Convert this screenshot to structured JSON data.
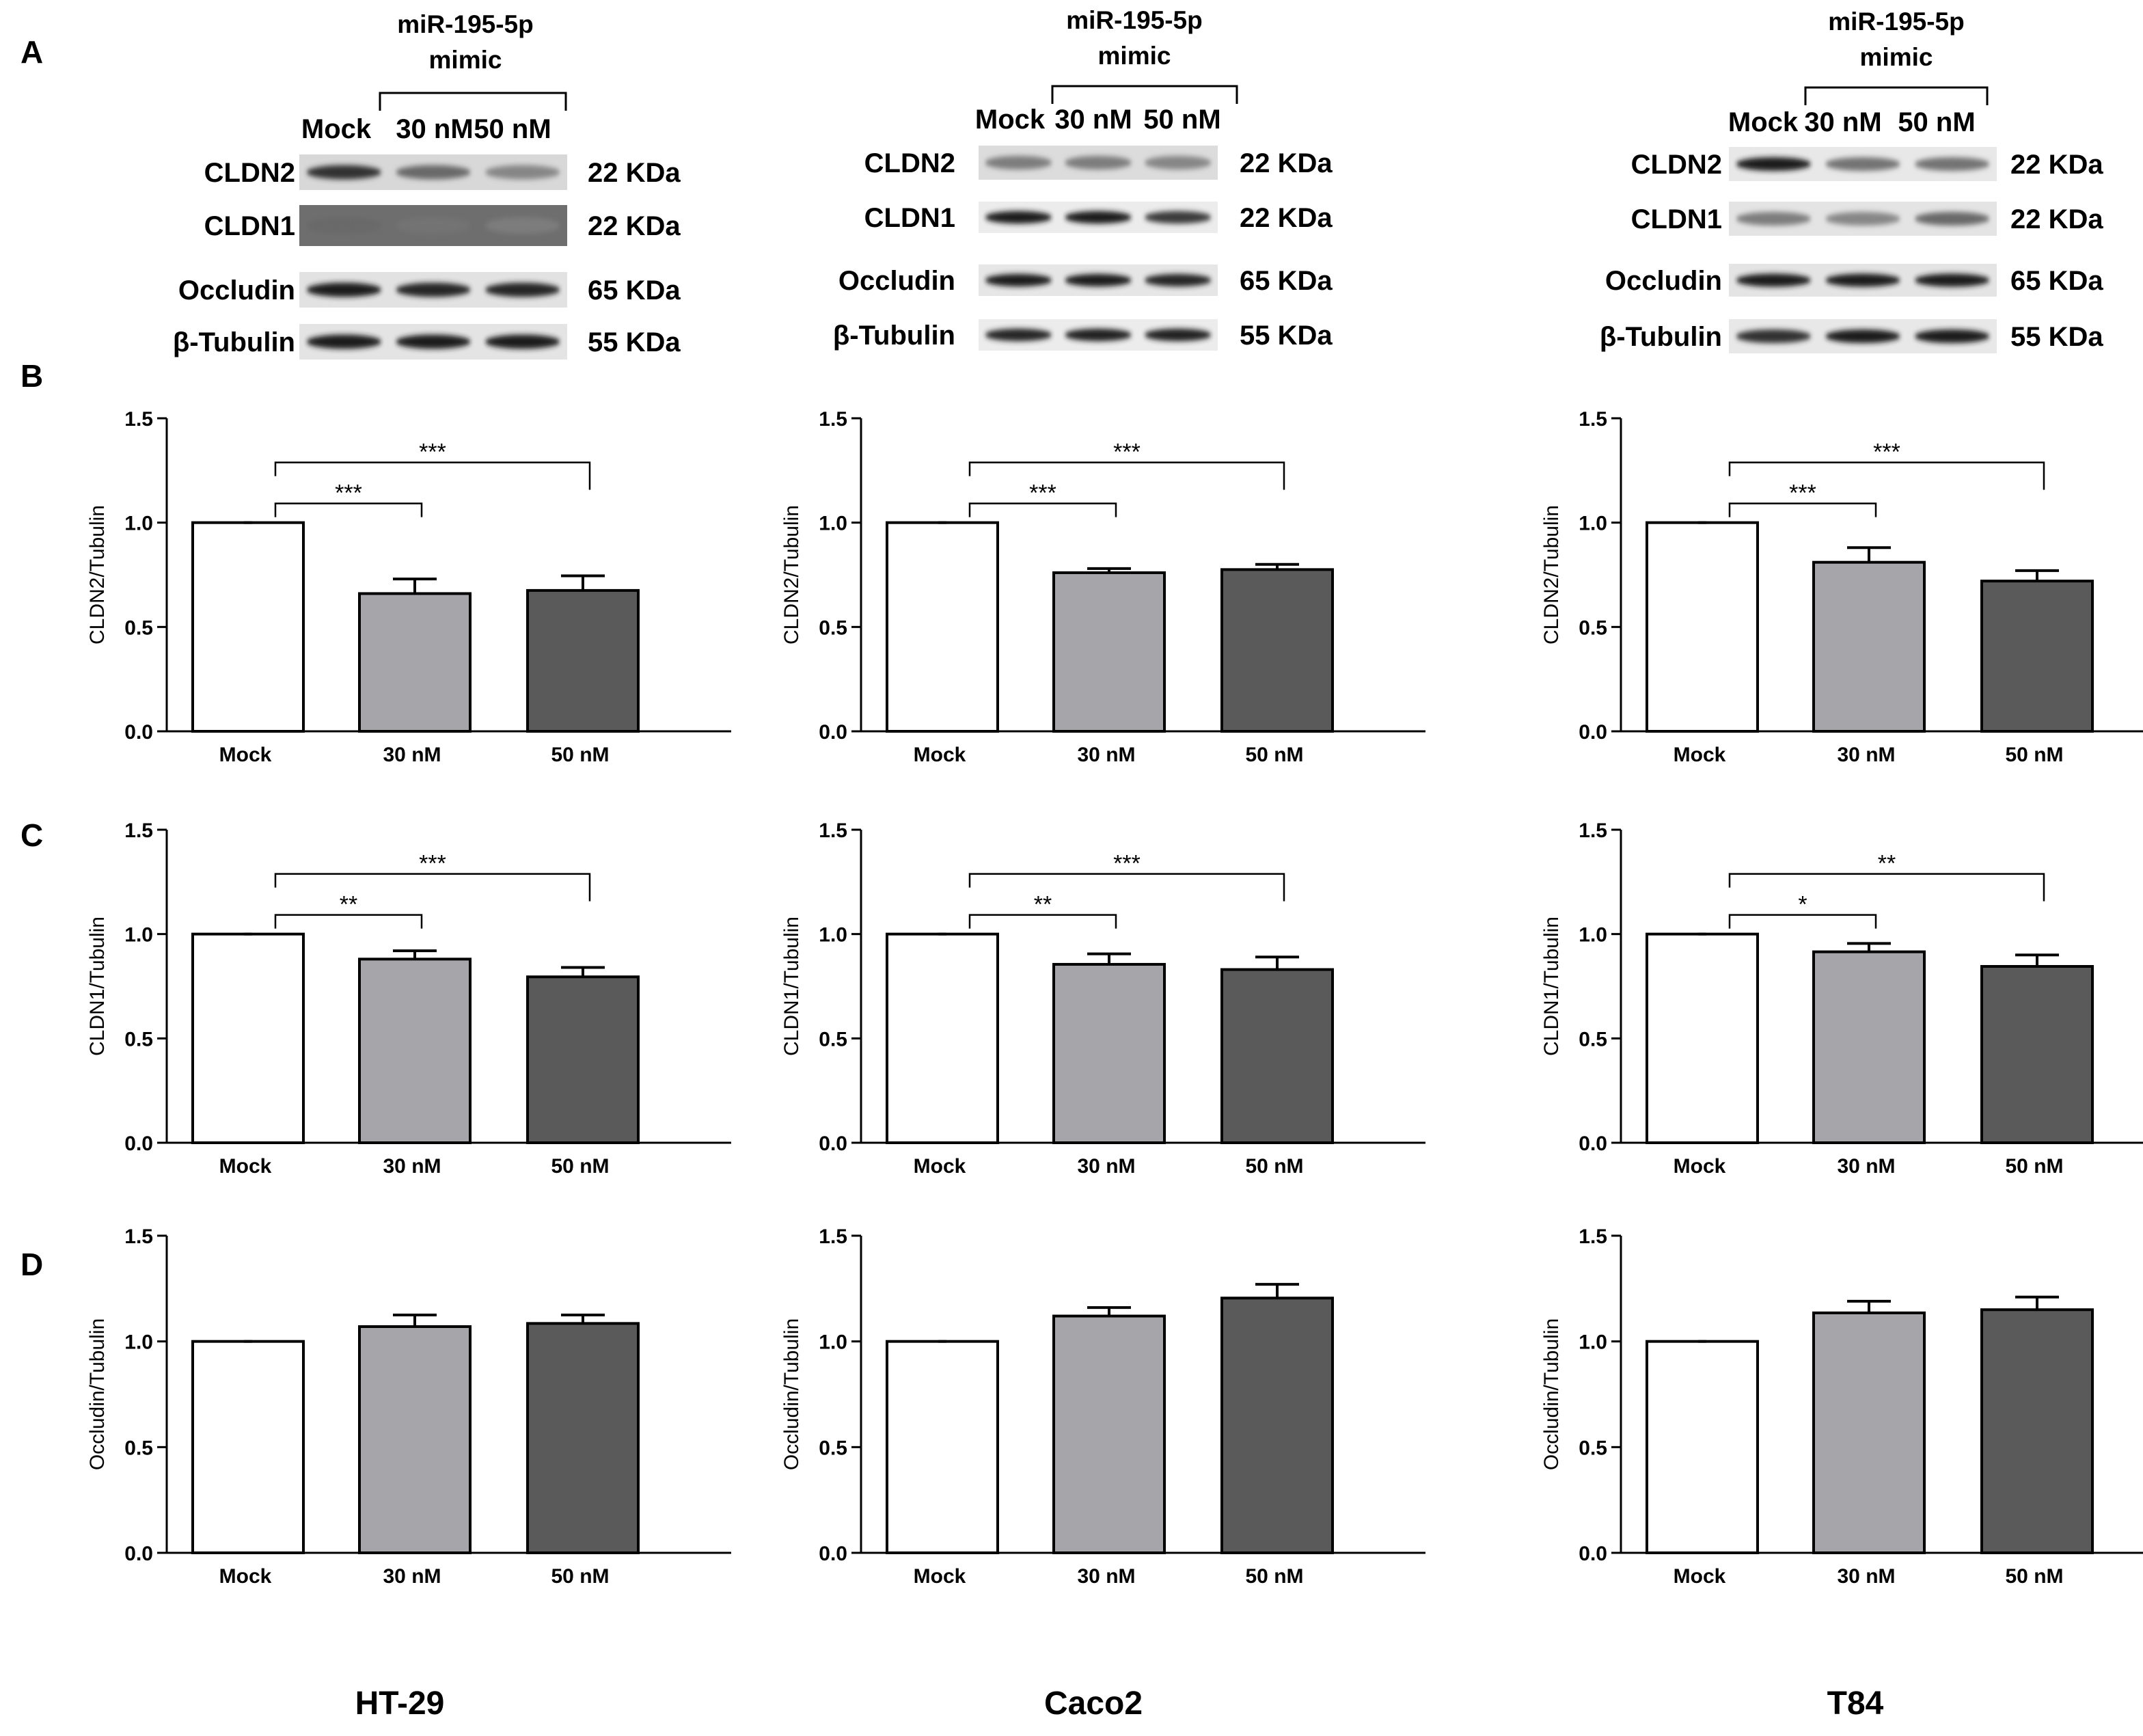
{
  "figure": {
    "panels": [
      "A",
      "B",
      "C",
      "D"
    ],
    "cell_lines": [
      "HT-29",
      "Caco2",
      "T84"
    ]
  },
  "western_blot": {
    "treatment_label_line1": "miR-195-5p",
    "treatment_label_line2": "mimic",
    "lanes": [
      "Mock",
      "30 nM",
      "50 nM"
    ],
    "proteins": [
      {
        "name": "CLDN2",
        "mw": "22 KDa"
      },
      {
        "name": "CLDN1",
        "mw": "22 KDa"
      },
      {
        "name": "Occludin",
        "mw": "65 KDa"
      },
      {
        "name": "β-Tubulin",
        "mw": "55 KDa"
      }
    ]
  },
  "colors": {
    "mock": "#ffffff",
    "nM30": "#a6a6aa",
    "nM50": "#5a5a5a",
    "axis": "#000000"
  },
  "chart_data": [
    {
      "type": "bar",
      "panel": "B",
      "cell_line": "HT-29",
      "ylabel": "CLDN2/Tubulin",
      "categories": [
        "Mock",
        "30 nM",
        "50 nM"
      ],
      "values": [
        1.0,
        0.66,
        0.675
      ],
      "errors": [
        0,
        0.07,
        0.07
      ],
      "ylim": [
        0,
        1.5
      ],
      "yticks": [
        "0.0",
        "0.5",
        "1.0",
        "1.5"
      ],
      "significance": [
        {
          "from": 0,
          "to": 1,
          "label": "***"
        },
        {
          "from": 0,
          "to": 2,
          "label": "***"
        }
      ]
    },
    {
      "type": "bar",
      "panel": "B",
      "cell_line": "Caco2",
      "ylabel": "CLDN2/Tubulin",
      "categories": [
        "Mock",
        "30 nM",
        "50 nM"
      ],
      "values": [
        1.0,
        0.76,
        0.775
      ],
      "errors": [
        0,
        0.02,
        0.025
      ],
      "ylim": [
        0,
        1.5
      ],
      "yticks": [
        "0.0",
        "0.5",
        "1.0",
        "1.5"
      ],
      "significance": [
        {
          "from": 0,
          "to": 1,
          "label": "***"
        },
        {
          "from": 0,
          "to": 2,
          "label": "***"
        }
      ]
    },
    {
      "type": "bar",
      "panel": "B",
      "cell_line": "T84",
      "ylabel": "CLDN2/Tubulin",
      "categories": [
        "Mock",
        "30 nM",
        "50 nM"
      ],
      "values": [
        1.0,
        0.81,
        0.72
      ],
      "errors": [
        0,
        0.07,
        0.05
      ],
      "ylim": [
        0,
        1.5
      ],
      "yticks": [
        "0.0",
        "0.5",
        "1.0",
        "1.5"
      ],
      "significance": [
        {
          "from": 0,
          "to": 1,
          "label": "***"
        },
        {
          "from": 0,
          "to": 2,
          "label": "***"
        }
      ]
    },
    {
      "type": "bar",
      "panel": "C",
      "cell_line": "HT-29",
      "ylabel": "CLDN1/Tubulin",
      "categories": [
        "Mock",
        "30 nM",
        "50 nM"
      ],
      "values": [
        1.0,
        0.88,
        0.795
      ],
      "errors": [
        0,
        0.04,
        0.045
      ],
      "ylim": [
        0,
        1.5
      ],
      "yticks": [
        "0.0",
        "0.5",
        "1.0",
        "1.5"
      ],
      "significance": [
        {
          "from": 0,
          "to": 1,
          "label": "**"
        },
        {
          "from": 0,
          "to": 2,
          "label": "***"
        }
      ]
    },
    {
      "type": "bar",
      "panel": "C",
      "cell_line": "Caco2",
      "ylabel": "CLDN1/Tubulin",
      "categories": [
        "Mock",
        "30 nM",
        "50 nM"
      ],
      "values": [
        1.0,
        0.855,
        0.83
      ],
      "errors": [
        0,
        0.05,
        0.06
      ],
      "ylim": [
        0,
        1.5
      ],
      "yticks": [
        "0.0",
        "0.5",
        "1.0",
        "1.5"
      ],
      "significance": [
        {
          "from": 0,
          "to": 1,
          "label": "**"
        },
        {
          "from": 0,
          "to": 2,
          "label": "***"
        }
      ]
    },
    {
      "type": "bar",
      "panel": "C",
      "cell_line": "T84",
      "ylabel": "CLDN1/Tubulin",
      "categories": [
        "Mock",
        "30 nM",
        "50 nM"
      ],
      "values": [
        1.0,
        0.915,
        0.845
      ],
      "errors": [
        0,
        0.04,
        0.055
      ],
      "ylim": [
        0,
        1.5
      ],
      "yticks": [
        "0.0",
        "0.5",
        "1.0",
        "1.5"
      ],
      "significance": [
        {
          "from": 0,
          "to": 1,
          "label": "*"
        },
        {
          "from": 0,
          "to": 2,
          "label": "**"
        }
      ]
    },
    {
      "type": "bar",
      "panel": "D",
      "cell_line": "HT-29",
      "ylabel": "Occludin/Tubulin",
      "categories": [
        "Mock",
        "30 nM",
        "50 nM"
      ],
      "values": [
        1.0,
        1.07,
        1.085
      ],
      "errors": [
        0,
        0.055,
        0.04
      ],
      "ylim": [
        0,
        1.5
      ],
      "yticks": [
        "0.0",
        "0.5",
        "1.0",
        "1.5"
      ],
      "significance": []
    },
    {
      "type": "bar",
      "panel": "D",
      "cell_line": "Caco2",
      "ylabel": "Occludin/Tubulin",
      "categories": [
        "Mock",
        "30 nM",
        "50 nM"
      ],
      "values": [
        1.0,
        1.12,
        1.205
      ],
      "errors": [
        0,
        0.04,
        0.065
      ],
      "ylim": [
        0,
        1.5
      ],
      "yticks": [
        "0.0",
        "0.5",
        "1.0",
        "1.5"
      ],
      "significance": []
    },
    {
      "type": "bar",
      "panel": "D",
      "cell_line": "T84",
      "ylabel": "Occludin/Tubulin",
      "categories": [
        "Mock",
        "30 nM",
        "50 nM"
      ],
      "values": [
        1.0,
        1.135,
        1.15
      ],
      "errors": [
        0,
        0.055,
        0.06
      ],
      "ylim": [
        0,
        1.5
      ],
      "yticks": [
        "0.0",
        "0.5",
        "1.0",
        "1.5"
      ],
      "significance": []
    }
  ]
}
